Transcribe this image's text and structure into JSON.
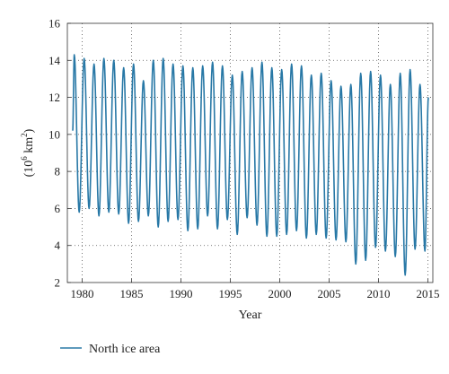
{
  "chart_data": {
    "type": "line",
    "title": "",
    "xlabel": "Year",
    "ylabel_base": "(10",
    "ylabel_sup": "6",
    "ylabel_unit": " km",
    "ylabel_sup2": "2",
    "ylabel_close": ")",
    "xlim": [
      1978.5,
      2015.5
    ],
    "ylim": [
      2,
      16
    ],
    "xticks": [
      1980,
      1985,
      1990,
      1995,
      2000,
      2005,
      2010,
      2015
    ],
    "yticks": [
      2,
      4,
      6,
      8,
      10,
      12,
      14,
      16
    ],
    "grid": "dotted",
    "legend_position": "bottom-left",
    "start_value": 10.2,
    "end_value": 12.0,
    "series": [
      {
        "name": "North ice area",
        "color": "#2878a6",
        "years": [
          1979,
          1980,
          1981,
          1982,
          1983,
          1984,
          1985,
          1986,
          1987,
          1988,
          1989,
          1990,
          1991,
          1992,
          1993,
          1994,
          1995,
          1996,
          1997,
          1998,
          1999,
          2000,
          2001,
          2002,
          2003,
          2004,
          2005,
          2006,
          2007,
          2008,
          2009,
          2010,
          2011,
          2012,
          2013,
          2014
        ],
        "annual_max": [
          14.3,
          14.1,
          13.8,
          14.1,
          14.0,
          13.6,
          13.8,
          12.9,
          14.0,
          14.1,
          13.8,
          13.7,
          13.6,
          13.7,
          13.9,
          13.7,
          13.2,
          13.4,
          13.6,
          13.9,
          13.6,
          13.5,
          13.8,
          13.7,
          13.2,
          13.3,
          12.9,
          12.6,
          12.7,
          13.3,
          13.4,
          13.2,
          12.7,
          13.3,
          13.5,
          12.7
        ],
        "annual_min": [
          5.8,
          6.0,
          5.6,
          5.8,
          5.7,
          5.2,
          5.3,
          5.6,
          5.0,
          5.3,
          5.4,
          4.8,
          4.9,
          5.6,
          4.9,
          5.4,
          4.6,
          5.5,
          5.1,
          4.5,
          4.5,
          4.6,
          4.8,
          4.4,
          4.6,
          4.4,
          4.3,
          4.2,
          3.0,
          3.2,
          3.9,
          3.7,
          3.4,
          2.4,
          3.8,
          3.7
        ]
      }
    ]
  }
}
